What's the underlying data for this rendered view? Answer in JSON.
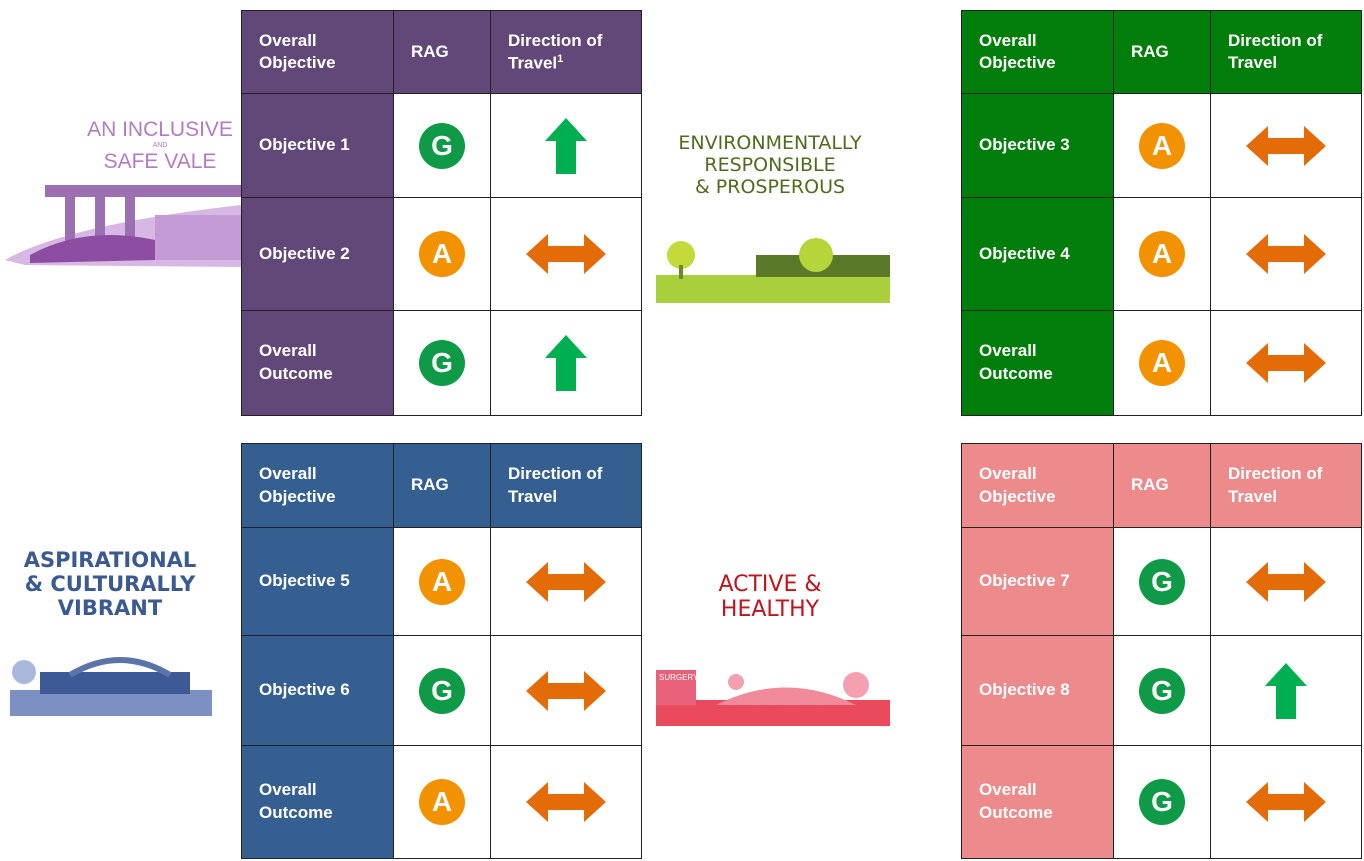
{
  "panels": [
    {
      "label_lines": [
        "AN INCLUSIVE",
        "AND",
        "SAFE VALE"
      ],
      "label_color": "#b27cc4",
      "header_color": "#614878",
      "header": [
        "Overall Objective",
        "RAG",
        "Direction of Travel"
      ],
      "footnote_marker": "1",
      "rows": [
        {
          "objective": "Objective 1",
          "rag": "G",
          "rag_color": "#0e9a47",
          "direction": "up",
          "arrow_color": "#00b050"
        },
        {
          "objective": "Objective 2",
          "rag": "A",
          "rag_color": "#f39200",
          "direction": "both",
          "arrow_color": "#e36c09"
        },
        {
          "objective": "Overall Outcome",
          "rag": "G",
          "rag_color": "#0e9a47",
          "direction": "up",
          "arrow_color": "#00b050"
        }
      ]
    },
    {
      "label_lines": [
        "ENVIRONMENTALLY",
        "RESPONSIBLE",
        "& PROSPEROUS"
      ],
      "label_color": "#4f6b1f",
      "header_color": "#007d0a",
      "header": [
        "Overall Objective",
        "RAG",
        "Direction of Travel"
      ],
      "rows": [
        {
          "objective": "Objective 3",
          "rag": "A",
          "rag_color": "#f39200",
          "direction": "both",
          "arrow_color": "#e36c09"
        },
        {
          "objective": "Objective 4",
          "rag": "A",
          "rag_color": "#f39200",
          "direction": "both",
          "arrow_color": "#e36c09"
        },
        {
          "objective": "Overall Outcome",
          "rag": "A",
          "rag_color": "#f39200",
          "direction": "both",
          "arrow_color": "#e36c09"
        }
      ]
    },
    {
      "label_lines": [
        "ASPIRATIONAL",
        "& CULTURALLY",
        "VIBRANT"
      ],
      "label_color": "#3a5a91",
      "header_color": "#365f91",
      "header": [
        "Overall Objective",
        "RAG",
        "Direction of Travel"
      ],
      "rows": [
        {
          "objective": "Objective 5",
          "rag": "A",
          "rag_color": "#f39200",
          "direction": "both",
          "arrow_color": "#e36c09"
        },
        {
          "objective": "Objective 6",
          "rag": "G",
          "rag_color": "#0e9a47",
          "direction": "both",
          "arrow_color": "#e36c09"
        },
        {
          "objective": "Overall Outcome",
          "rag": "A",
          "rag_color": "#f39200",
          "direction": "both",
          "arrow_color": "#e36c09"
        }
      ]
    },
    {
      "label_lines": [
        "ACTIVE &",
        "HEALTHY"
      ],
      "label_color": "#c0141c",
      "header_color": "#ed8a8b",
      "image_text": "SURGERY",
      "header": [
        "Overall Objective",
        "RAG",
        "Direction of Travel"
      ],
      "rows": [
        {
          "objective": "Objective 7",
          "rag": "G",
          "rag_color": "#0e9a47",
          "direction": "both",
          "arrow_color": "#e36c09"
        },
        {
          "objective": "Objective 8",
          "rag": "G",
          "rag_color": "#0e9a47",
          "direction": "up",
          "arrow_color": "#00b050"
        },
        {
          "objective": "Overall Outcome",
          "rag": "G",
          "rag_color": "#0e9a47",
          "direction": "both",
          "arrow_color": "#e36c09"
        }
      ]
    }
  ]
}
